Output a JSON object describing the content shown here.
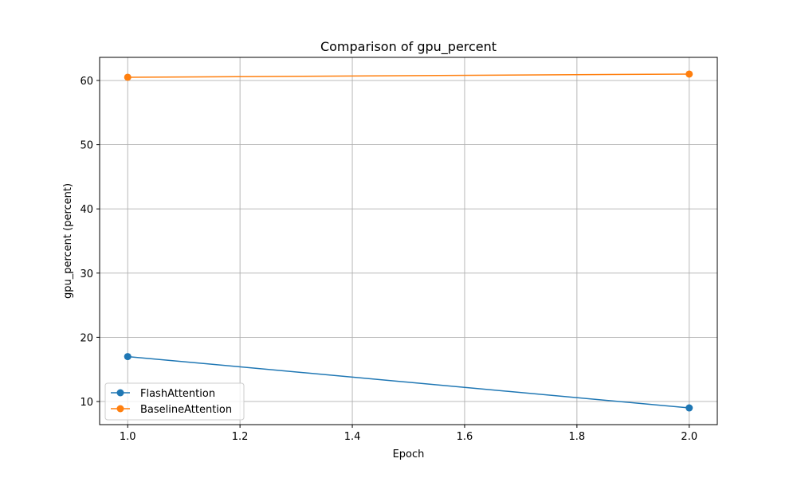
{
  "chart_data": {
    "type": "line",
    "title": "Comparison of gpu_percent",
    "xlabel": "Epoch",
    "ylabel": "gpu_percent (percent)",
    "x": [
      1.0,
      2.0
    ],
    "xlim": [
      0.95,
      2.05
    ],
    "ylim": [
      6.4,
      63.6
    ],
    "xticks": [
      "1.0",
      "1.2",
      "1.4",
      "1.6",
      "1.8",
      "2.0"
    ],
    "yticks": [
      "10",
      "20",
      "30",
      "40",
      "50",
      "60"
    ],
    "grid": true,
    "legend_position": "lower-left",
    "series": [
      {
        "name": "FlashAttention",
        "values": [
          17.0,
          9.0
        ],
        "color": "#1f77b4",
        "marker": "circle"
      },
      {
        "name": "BaselineAttention",
        "values": [
          60.5,
          61.0
        ],
        "color": "#ff7f0e",
        "marker": "circle"
      }
    ]
  }
}
